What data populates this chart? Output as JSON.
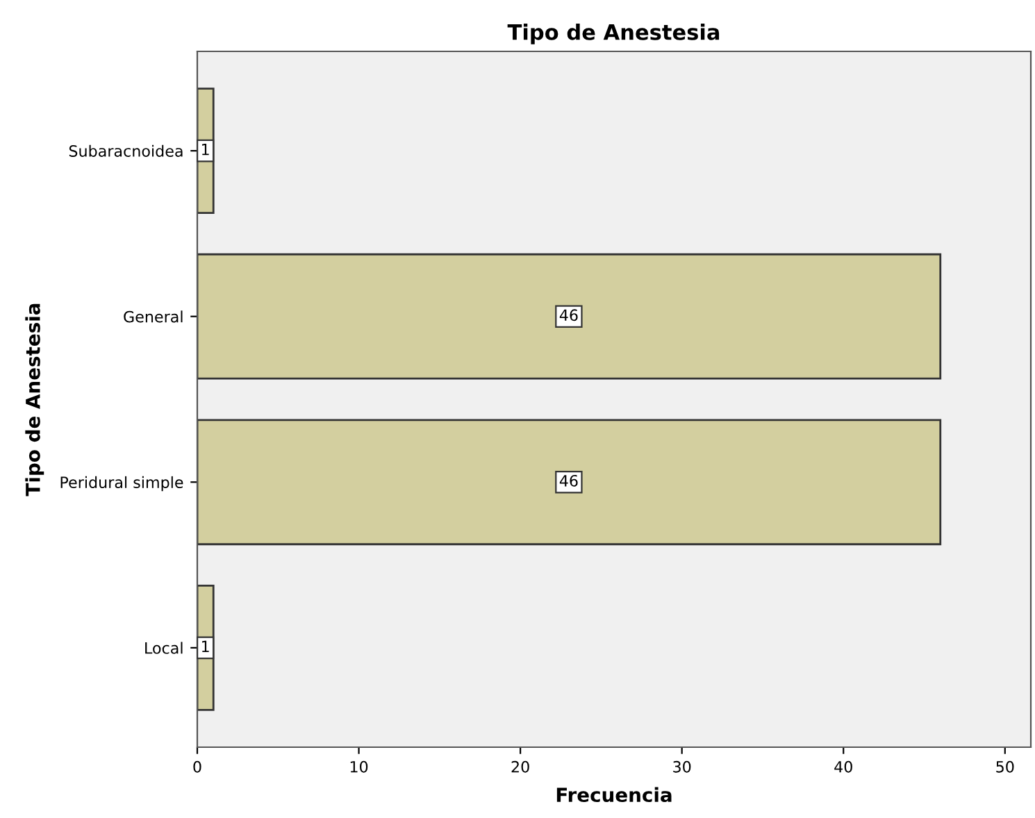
{
  "chart_data": {
    "type": "bar",
    "orientation": "horizontal",
    "title": "Tipo de Anestesia",
    "xlabel": "Frecuencia",
    "ylabel": "Tipo de Anestesia",
    "categories": [
      "Subaracnoidea",
      "General",
      "Peridural simple",
      "Local"
    ],
    "values": [
      1,
      46,
      46,
      1
    ],
    "color": "#d3cf9f",
    "xlim": [
      0,
      51.6
    ],
    "xticks": [
      0,
      10,
      20,
      30,
      40,
      50
    ],
    "data_labels": true,
    "grid": false
  }
}
